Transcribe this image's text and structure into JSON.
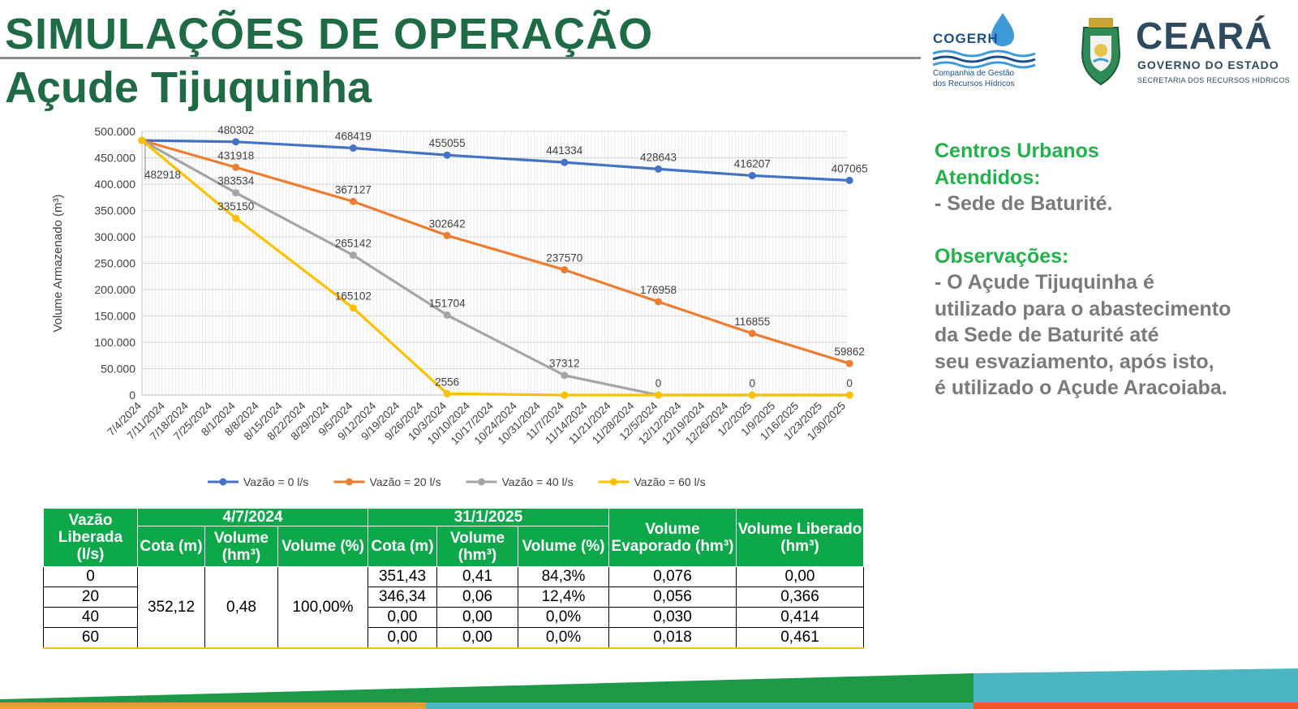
{
  "header": {
    "title": "SIMULAÇÕES DE OPERAÇÃO",
    "subtitle": "Açude Tijuquinha"
  },
  "logos": {
    "cogerh_name": "COGERH",
    "cogerh_sub1": "Companhia de Gestão",
    "cogerh_sub2": "dos Recursos Hídricos",
    "ceara_name": "CEARÁ",
    "ceara_gov": "GOVERNO DO ESTADO",
    "ceara_sec": "SECRETARIA DOS RECURSOS HÍDRICOS"
  },
  "side_panel": {
    "centros_title_1": "Centros Urbanos",
    "centros_title_2": "Atendidos:",
    "centros_item": "- Sede de Baturité.",
    "obs_title": "Observações:",
    "obs_lines": [
      "- O Açude Tijuquinha é",
      "utilizado para o abastecimento",
      "da Sede de Baturité até",
      "seu esvaziamento, após isto,",
      "é utilizado o Açude Aracoiaba."
    ]
  },
  "colors": {
    "title_green": "#1e6b45",
    "table_header_green": "#0ca84a",
    "side_green": "#21b24b",
    "side_gray": "#7a7a7a"
  },
  "chart_data": {
    "type": "line",
    "title": "",
    "ylabel": "Volume Armazenado (m³)",
    "xlabel": "",
    "ylim": [
      0,
      500000
    ],
    "y_ticks": [
      "0",
      "50.000",
      "100.000",
      "150.000",
      "200.000",
      "250.000",
      "300.000",
      "350.000",
      "400.000",
      "450.000",
      "500.000"
    ],
    "x_tick_labels": [
      "7/4/2024",
      "7/11/2024",
      "7/18/2024",
      "7/25/2024",
      "8/1/2024",
      "8/8/2024",
      "8/15/2024",
      "8/22/2024",
      "8/29/2024",
      "9/5/2024",
      "9/12/2024",
      "9/19/2024",
      "9/26/2024",
      "10/3/2024",
      "10/10/2024",
      "10/17/2024",
      "10/24/2024",
      "10/31/2024",
      "11/7/2024",
      "11/14/2024",
      "11/21/2024",
      "11/28/2024",
      "12/5/2024",
      "12/12/2024",
      "12/19/2024",
      "12/26/2024",
      "1/2/2025",
      "1/9/2025",
      "1/16/2025",
      "1/23/2025",
      "1/30/2025"
    ],
    "x_dates": [
      "7/4/2024",
      "8/1/2024",
      "9/5/2024",
      "10/3/2024",
      "11/7/2024",
      "12/5/2024",
      "1/2/2025",
      "1/31/2025"
    ],
    "grid": true,
    "legend_position": "bottom",
    "series": [
      {
        "name": "Vazão = 0 l/s",
        "color": "#4472c4",
        "values": [
          482918,
          480302,
          468419,
          455055,
          441334,
          428643,
          416207,
          407065
        ],
        "labels": [
          "",
          "480302",
          "468419",
          "455055",
          "441334",
          "428643",
          "416207",
          "407065"
        ]
      },
      {
        "name": "Vazão = 20 l/s",
        "color": "#ed7d31",
        "values": [
          482918,
          431918,
          367127,
          302642,
          237570,
          176958,
          116855,
          59862
        ],
        "labels": [
          "",
          "431918",
          "367127",
          "302642",
          "237570",
          "176958",
          "116855",
          "59862"
        ]
      },
      {
        "name": "Vazão = 40 l/s",
        "color": "#a5a5a5",
        "values": [
          482918,
          383534,
          265142,
          151704,
          37312,
          0,
          0,
          0
        ],
        "labels": [
          "",
          "383534",
          "265142",
          "151704",
          "37312",
          "0",
          "0",
          "0"
        ]
      },
      {
        "name": "Vazão = 60 l/s",
        "color": "#ffc000",
        "values": [
          482918,
          335150,
          165102,
          2556,
          0,
          0,
          0,
          0
        ],
        "labels": [
          "",
          "335150",
          "165102",
          "2556",
          "",
          "",
          "",
          ""
        ]
      }
    ],
    "start_label": "482918"
  },
  "table": {
    "h_vazao": "Vazão Liberada (l/s)",
    "h_date1": "4/7/2024",
    "h_date2": "31/1/2025",
    "h_cota": "Cota (m)",
    "h_volume": "Volume (hm³)",
    "h_volume_pct": "Volume (%)",
    "h_evap": "Volume Evaporado (hm³)",
    "h_liberado": "Volume Liberado (hm³)",
    "start_cota": "352,12",
    "start_volume": "0,48",
    "start_pct": "100,00%",
    "rows": [
      {
        "vazao": "0",
        "cota": "351,43",
        "volume": "0,41",
        "pct": "84,3%",
        "evap": "0,076",
        "lib": "0,00"
      },
      {
        "vazao": "20",
        "cota": "346,34",
        "volume": "0,06",
        "pct": "12,4%",
        "evap": "0,056",
        "lib": "0,366"
      },
      {
        "vazao": "40",
        "cota": "0,00",
        "volume": "0,00",
        "pct": "0,0%",
        "evap": "0,030",
        "lib": "0,414"
      },
      {
        "vazao": "60",
        "cota": "0,00",
        "volume": "0,00",
        "pct": "0,0%",
        "evap": "0,018",
        "lib": "0,461"
      }
    ]
  }
}
